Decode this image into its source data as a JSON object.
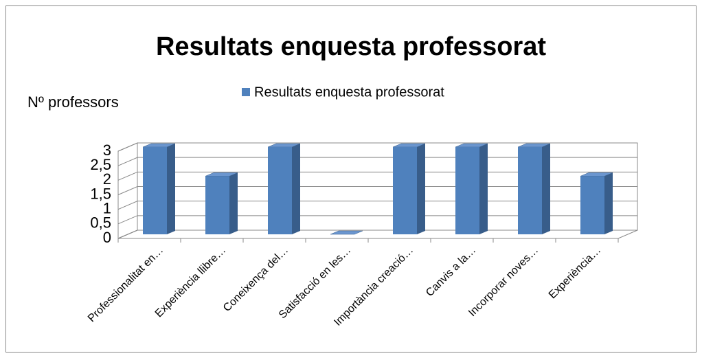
{
  "chart_data": {
    "type": "bar3d",
    "title": "Resultats enquesta professorat",
    "y_label": "Nº professors",
    "categories": [
      "Professionalitat en…",
      "Experiència llibre…",
      "Coneixença del…",
      "Satisfacció en les…",
      "Importància creació…",
      "Canvis a la…",
      "Incorporar noves…",
      "Experiència…"
    ],
    "series": [
      {
        "name": "Resultats enquesta professorat",
        "color": "#4f81bd",
        "values": [
          3,
          2,
          3,
          0,
          3,
          3,
          3,
          2
        ]
      }
    ],
    "ylim": [
      0,
      3
    ],
    "yticks": [
      0,
      {
        "value": 0.5,
        "label": "0,5"
      },
      1,
      {
        "value": 1.5,
        "label": "1,5"
      },
      2,
      {
        "value": 2.5,
        "label": "2,5"
      },
      3
    ],
    "grid": true,
    "legend": "top"
  }
}
